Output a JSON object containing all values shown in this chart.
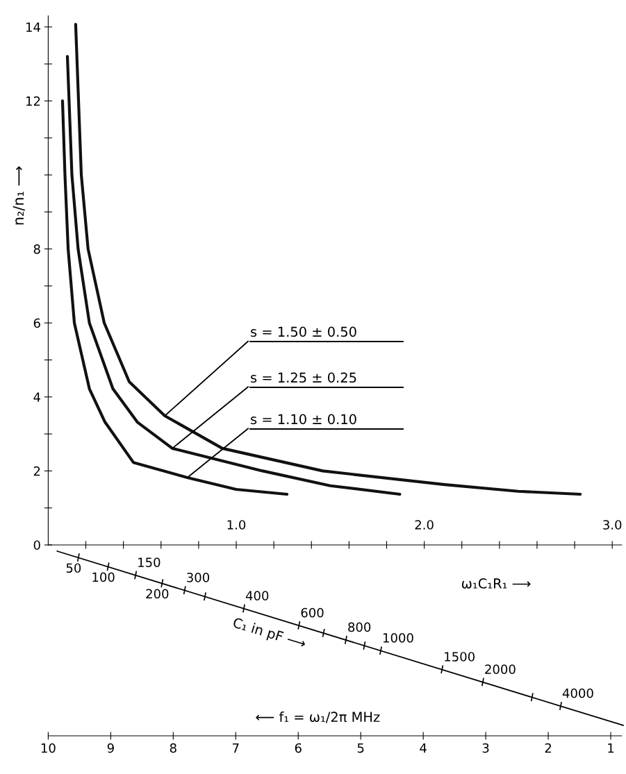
{
  "chart_data": {
    "type": "line",
    "xlabel": "ω₁C₁R₁ ⟶",
    "ylabel": "n₂/n₁ ⟶",
    "series": [
      {
        "color": "#111111",
        "x": [
          0.076,
          0.089,
          0.106,
          0.139,
          0.219,
          0.302,
          0.453,
          0.74,
          1.0,
          1.27
        ],
        "values": [
          12.0,
          10,
          8,
          6,
          4.22,
          3.32,
          2.23,
          1.82,
          1.5,
          1.37
        ]
      },
      {
        "color": "#111111",
        "x": [
          0.102,
          0.126,
          0.159,
          0.219,
          0.344,
          0.474,
          0.66,
          1.14,
          1.5,
          1.87
        ],
        "values": [
          13.2,
          10,
          8,
          6,
          4.22,
          3.32,
          2.61,
          2.0,
          1.6,
          1.37
        ]
      },
      {
        "color": "#111111",
        "x": [
          0.146,
          0.176,
          0.212,
          0.298,
          0.431,
          0.62,
          0.926,
          1.46,
          2.11,
          2.5,
          2.83
        ],
        "values": [
          14.07,
          10,
          8,
          6,
          4.41,
          3.49,
          2.61,
          2.0,
          1.63,
          1.45,
          1.37
        ]
      }
    ],
    "annotations": [
      {
        "text": "s = 1.50 ± 0.50",
        "x": 0.62,
        "y": 3.49
      },
      {
        "text": "s = 1.25 ± 0.25",
        "x": 0.66,
        "y": 2.61
      },
      {
        "text": "s = 1.10 ± 0.10",
        "x": 0.74,
        "y": 1.82
      },
      "50",
      "100",
      "150",
      "200",
      "300",
      "400",
      "600",
      "800",
      "1000",
      "1500",
      "2000",
      "4000",
      "C₁ in pF ⟶",
      "⟵ f₁ = ω₁/2π MHz",
      "10",
      "9",
      "8",
      "7",
      "6",
      "5",
      "4",
      "3",
      "2",
      "1"
    ],
    "xlim": [
      0,
      3.05
    ],
    "xticks": [
      {
        "value": 0.2,
        "label": null
      },
      {
        "value": 0.4,
        "label": null
      },
      {
        "value": 0.6,
        "label": null
      },
      {
        "value": 0.8,
        "label": null
      },
      {
        "value": 1.0,
        "label": "1.0"
      },
      {
        "value": 1.2,
        "label": null
      },
      {
        "value": 1.4,
        "label": null
      },
      {
        "value": 1.6,
        "label": null
      },
      {
        "value": 1.8,
        "label": null
      },
      {
        "value": 2.0,
        "label": "2.0"
      },
      {
        "value": 2.2,
        "label": null
      },
      {
        "value": 2.4,
        "label": null
      },
      {
        "value": 2.6,
        "label": null
      },
      {
        "value": 2.8,
        "label": null
      },
      {
        "value": 3.0,
        "label": "3.0"
      }
    ],
    "ylim": [
      0,
      14.3
    ],
    "yticks": [
      0,
      {
        "value": 1,
        "label": null
      },
      2,
      {
        "value": 3,
        "label": null
      },
      4,
      {
        "value": 5,
        "label": null
      },
      6,
      {
        "value": 7,
        "label": null
      },
      8,
      {
        "value": 9,
        "label": null
      },
      {
        "value": 10,
        "label": null
      },
      {
        "value": 11,
        "label": null
      },
      12,
      {
        "value": 13,
        "label": null
      },
      14
    ],
    "grid": false,
    "marker": "none",
    "line_style": "solid"
  }
}
